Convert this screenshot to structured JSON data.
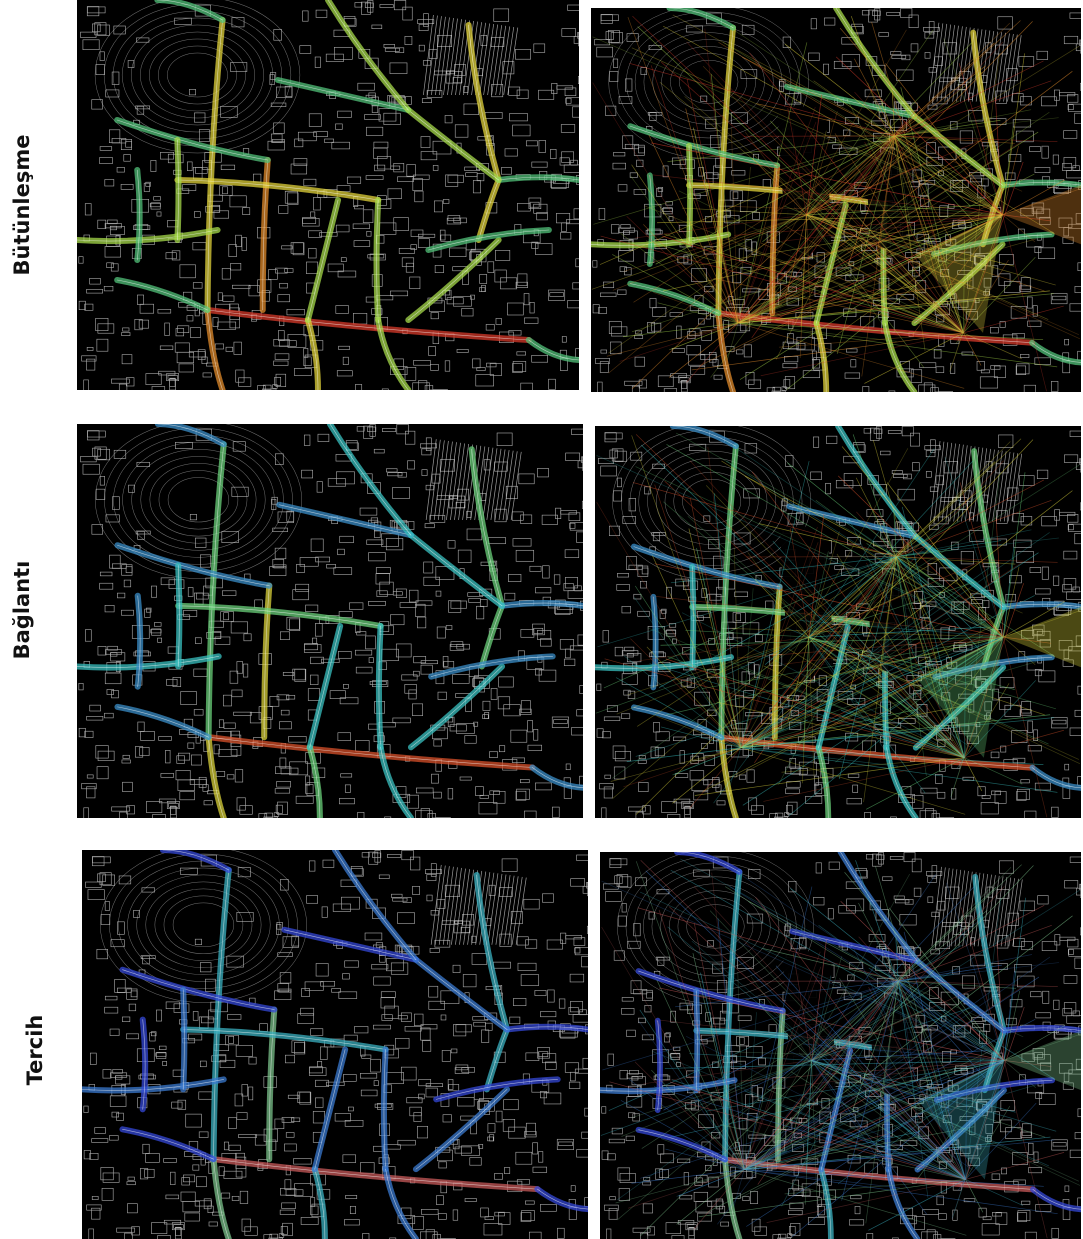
{
  "rows": [
    {
      "label": "Bütünleşme",
      "panels": [
        {
          "scale": "green-yellow-red",
          "variant": "street",
          "colors": [
            "#2aa8a0",
            "#52c27a",
            "#a6d94a",
            "#e0d23a",
            "#e08a2a",
            "#d83a2a"
          ]
        },
        {
          "scale": "green-yellow-red",
          "variant": "visibility",
          "colors": [
            "#2aa8a0",
            "#52c27a",
            "#a6d94a",
            "#e0d23a",
            "#e08a2a",
            "#d83a2a"
          ]
        }
      ]
    },
    {
      "label": "Bağlantı",
      "panels": [
        {
          "scale": "blue-cyan-green-red",
          "variant": "street",
          "colors": [
            "#3a4ab8",
            "#3a8ec8",
            "#38c0c0",
            "#6ad07a",
            "#d8d03a",
            "#d8502a"
          ]
        },
        {
          "scale": "blue-cyan-green-red",
          "variant": "visibility",
          "colors": [
            "#3a4ab8",
            "#3a8ec8",
            "#38c0c0",
            "#6ad07a",
            "#d8d03a",
            "#d8502a"
          ]
        }
      ]
    },
    {
      "label": "Tercih",
      "panels": [
        {
          "scale": "blue-dominant",
          "variant": "street",
          "colors": [
            "#2a32c8",
            "#3448d8",
            "#3a7ad0",
            "#3ab0c0",
            "#7ac08a",
            "#c85a5a"
          ]
        },
        {
          "scale": "blue-dominant",
          "variant": "visibility",
          "colors": [
            "#2a32c8",
            "#3448d8",
            "#3a7ad0",
            "#3ab0c0",
            "#7ac08a",
            "#c85a5a"
          ]
        }
      ]
    }
  ]
}
